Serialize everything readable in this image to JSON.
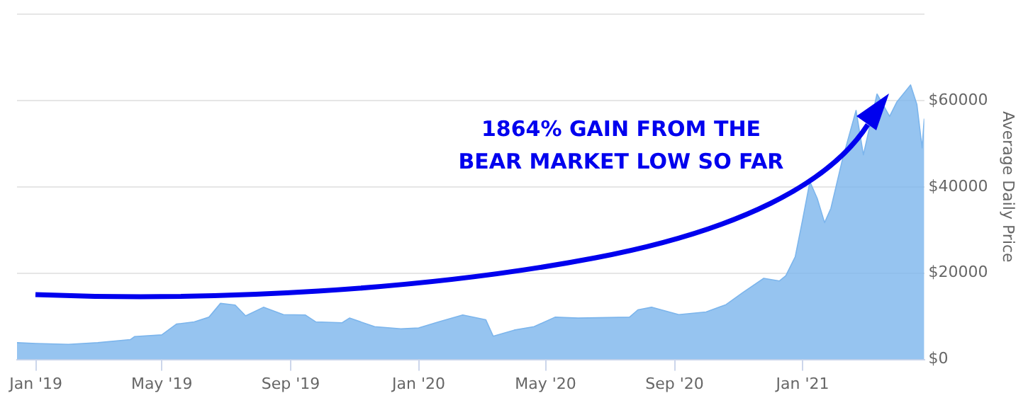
{
  "chart_data": {
    "type": "area",
    "ylabel": "Average Daily Price",
    "annotations": [
      "1864% GAIN FROM THE BEAR MARKET LOW SO FAR"
    ],
    "x": [
      "2018-12-14",
      "2019-01-01",
      "2019-02-01",
      "2019-03-01",
      "2019-04-01",
      "2019-04-05",
      "2019-05-01",
      "2019-05-15",
      "2019-06-01",
      "2019-06-15",
      "2019-06-26",
      "2019-07-10",
      "2019-07-20",
      "2019-08-06",
      "2019-08-25",
      "2019-09-15",
      "2019-09-25",
      "2019-10-20",
      "2019-10-27",
      "2019-11-20",
      "2019-12-15",
      "2020-01-01",
      "2020-01-20",
      "2020-02-12",
      "2020-03-05",
      "2020-03-12",
      "2020-04-01",
      "2020-04-20",
      "2020-05-10",
      "2020-06-01",
      "2020-07-20",
      "2020-07-28",
      "2020-08-10",
      "2020-09-05",
      "2020-10-01",
      "2020-10-20",
      "2020-11-05",
      "2020-11-25",
      "2020-12-10",
      "2020-12-16",
      "2020-12-25",
      "2021-01-01",
      "2021-01-08",
      "2021-01-15",
      "2021-01-22",
      "2021-01-28",
      "2021-02-08",
      "2021-02-21",
      "2021-02-28",
      "2021-03-13",
      "2021-03-25",
      "2021-04-01",
      "2021-04-14",
      "2021-04-20",
      "2021-04-25",
      "2021-04-27"
    ],
    "series": [
      {
        "color": "#7cb5ec",
        "values": [
          3900,
          3700,
          3500,
          3900,
          4600,
          5300,
          5700,
          8200,
          8700,
          9800,
          13000,
          12600,
          10100,
          12100,
          10400,
          10300,
          8700,
          8500,
          9600,
          7600,
          7100,
          7300,
          8700,
          10300,
          9200,
          5400,
          6800,
          7600,
          9800,
          9600,
          9800,
          11500,
          12100,
          10400,
          11000,
          12700,
          15500,
          18800,
          18200,
          19400,
          23800,
          32300,
          41200,
          37300,
          31700,
          35000,
          46300,
          57700,
          47400,
          61500,
          56300,
          59700,
          63600,
          59100,
          49000,
          55800
        ]
      }
    ],
    "xlim": [
      "2018-12-14",
      "2021-04-27"
    ],
    "xticks": [
      {
        "value": "2019-01-01",
        "label": "Jan '19"
      },
      {
        "value": "2019-05-01",
        "label": "May '19"
      },
      {
        "value": "2019-09-01",
        "label": "Sep '19"
      },
      {
        "value": "2020-01-01",
        "label": "Jan '20"
      },
      {
        "value": "2020-05-01",
        "label": "May '20"
      },
      {
        "value": "2020-09-01",
        "label": "Sep '20"
      },
      {
        "value": "2021-01-01",
        "label": "Jan '21"
      }
    ],
    "ylim": [
      0,
      80000
    ],
    "yticks": [
      {
        "value": 0,
        "label": "$0"
      },
      {
        "value": 20000,
        "label": "$20000"
      },
      {
        "value": 40000,
        "label": "$40000"
      },
      {
        "value": 60000,
        "label": "$60000"
      },
      {
        "value": 80000,
        "label": null
      }
    ],
    "grid": "y",
    "legend": false
  }
}
